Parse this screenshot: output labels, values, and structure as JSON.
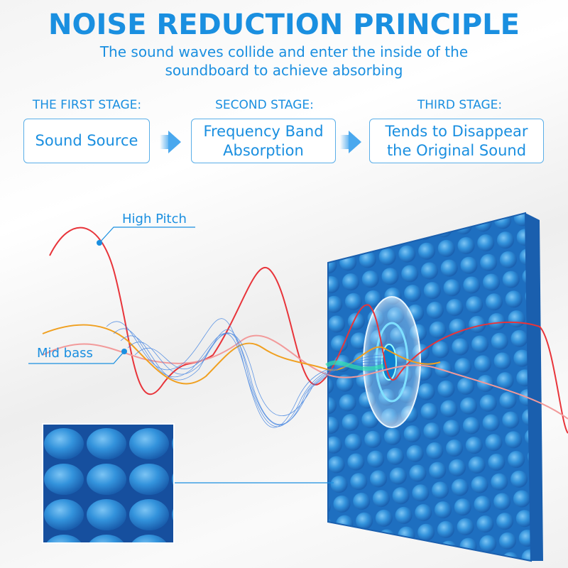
{
  "header": {
    "title": "NOISE REDUCTION PRINCIPLE",
    "subtitle_line1": "The sound waves collide and enter the inside of the",
    "subtitle_line2": "soundboard to achieve absorbing"
  },
  "stages": [
    {
      "label": "THE FIRST STAGE:",
      "box_line1": "Sound Source",
      "box_line2": ""
    },
    {
      "label": "SECOND STAGE:",
      "box_line1": "Frequency Band",
      "box_line2": "Absorption"
    },
    {
      "label": "THIRD STAGE:",
      "box_line1": "Tends to Disappear",
      "box_line2": "the Original Sound"
    }
  ],
  "callouts": {
    "high": "High Pitch",
    "mid": "Mid bass"
  },
  "colors": {
    "accent": "#1a8fe0",
    "foam": "#2f8fd8",
    "high_wave": "#e8343a",
    "mid_wave": "#f0a020"
  }
}
